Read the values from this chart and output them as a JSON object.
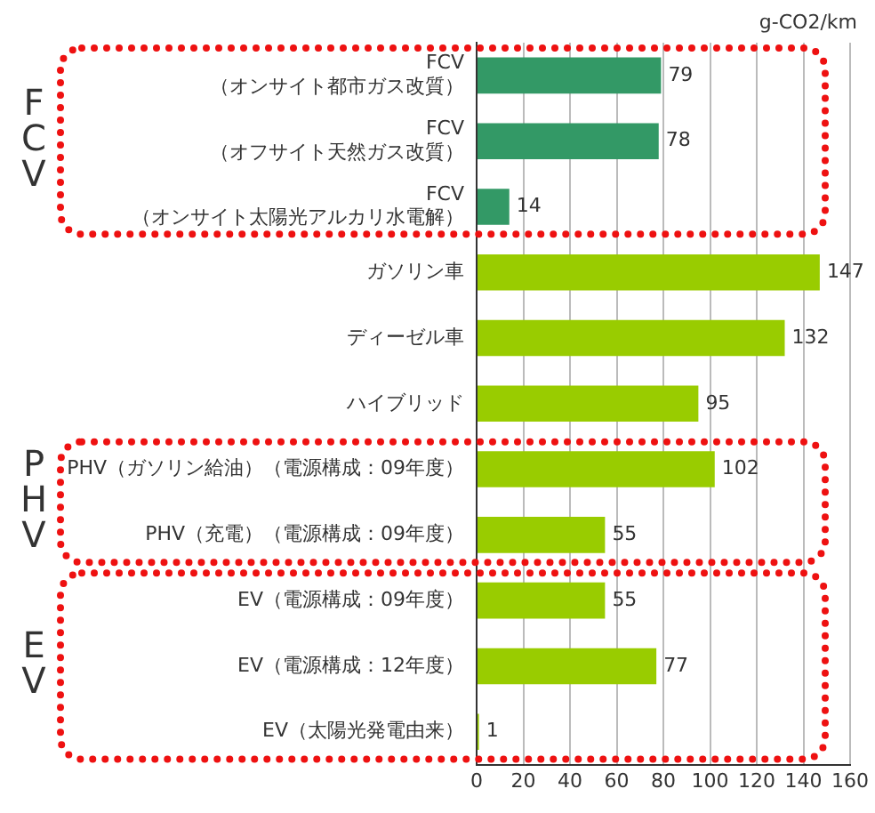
{
  "chart_data": {
    "type": "bar",
    "orientation": "horizontal",
    "categories": [
      "FCV\n（オンサイト都市ガス改質）",
      "FCV\n（オフサイト天然ガス改質）",
      "FCV\n（オンサイト太陽光アルカリ水電解）",
      "ガソリン車",
      "ディーゼル車",
      "ハイブリッド",
      "PHV（ガソリン給油）（電源構成：09年度）",
      "PHV（充電）（電源構成：09年度）",
      "EV（電源構成：09年度）",
      "EV（電源構成：12年度）",
      "EV（太陽光発電由来）"
    ],
    "values": [
      79,
      78,
      14,
      147,
      132,
      95,
      102,
      55,
      55,
      77,
      1
    ],
    "colors": [
      "#339966",
      "#339966",
      "#339966",
      "#99cc00",
      "#99cc00",
      "#99cc00",
      "#99cc00",
      "#99cc00",
      "#99cc00",
      "#99cc00",
      "#99cc00"
    ],
    "xlim": [
      0,
      160
    ],
    "xticks": [
      0,
      20,
      40,
      60,
      80,
      100,
      120,
      140,
      160
    ],
    "grid": "x",
    "legend": false,
    "data_labels": true,
    "annotations": [
      "g-CO2/km",
      "F\nC\nV",
      "P\nH\nV",
      "E\nV"
    ]
  }
}
